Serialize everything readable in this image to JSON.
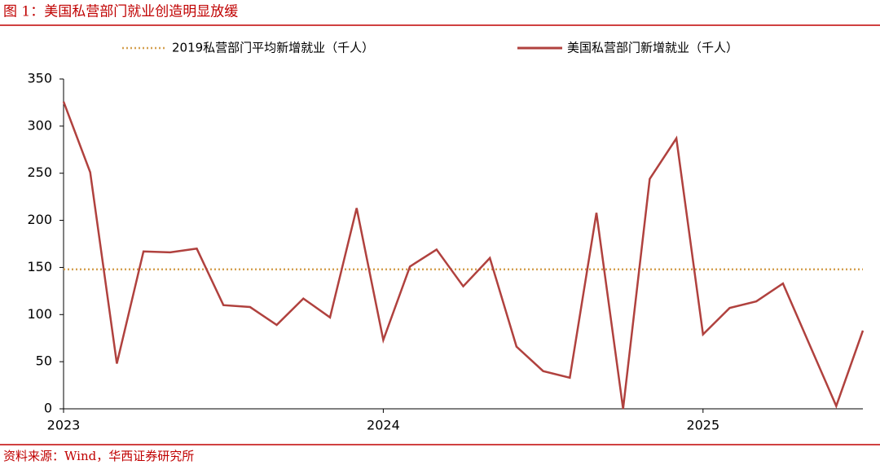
{
  "chart_data": {
    "type": "line",
    "title": "图 1：美国私营部门就业创造明显放缓",
    "source": "资料来源：Wind，华西证券研究所",
    "categories": [
      "2023",
      null,
      null,
      null,
      null,
      null,
      null,
      null,
      null,
      null,
      null,
      null,
      "2024",
      null,
      null,
      null,
      null,
      null,
      null,
      null,
      null,
      null,
      null,
      null,
      "2025",
      null,
      null,
      null,
      null,
      null,
      null
    ],
    "series": [
      {
        "name": "美国私营部门新增就业（千人）",
        "color": "#b0413e",
        "values": [
          326,
          251,
          48,
          167,
          166,
          170,
          110,
          108,
          89,
          117,
          97,
          213,
          73,
          151,
          169,
          130,
          160,
          66,
          40,
          33,
          208,
          0,
          244,
          287,
          79,
          107,
          114,
          133,
          68,
          3,
          83
        ]
      }
    ],
    "reference_line": {
      "name": "2019私营部门平均新增就业（千人）",
      "value": 148,
      "color": "#d4a050"
    },
    "ylim": [
      0,
      350
    ],
    "yticks": [
      0,
      50,
      100,
      150,
      200,
      250,
      300,
      350
    ]
  }
}
